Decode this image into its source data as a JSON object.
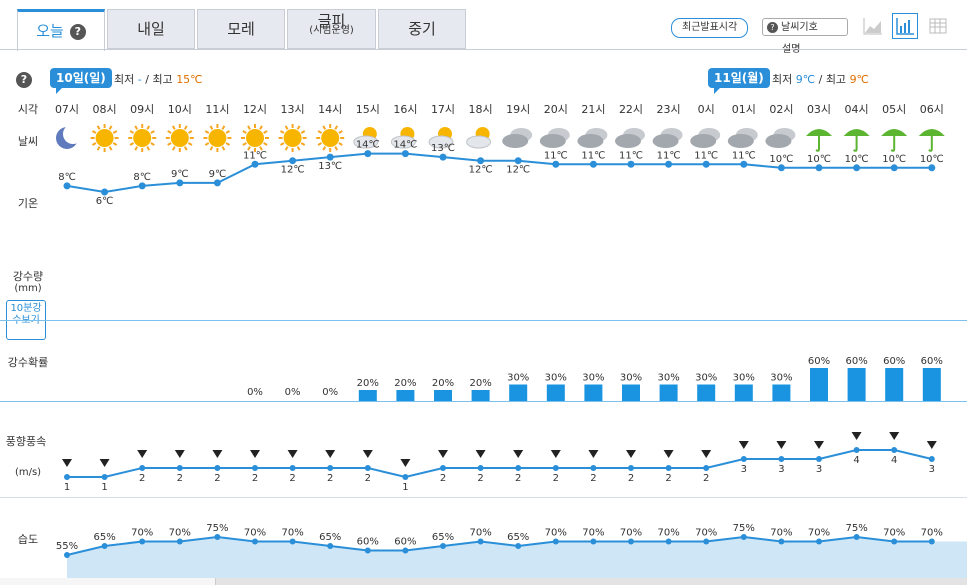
{
  "tabs": [
    {
      "label": "오늘",
      "active": true
    },
    {
      "label": "내일"
    },
    {
      "label": "모레"
    },
    {
      "label": "글피",
      "sub": "(시범운영)"
    },
    {
      "label": "중기"
    }
  ],
  "toolbar": {
    "latest_time": "최근발표시각",
    "weather_symbol": "날씨기호",
    "weather_symbol_desc": "설명"
  },
  "labels": {
    "time": "시각",
    "weather": "날씨",
    "temp": "기온",
    "precip": "강수량",
    "precip_unit": "(mm)",
    "precip_btn": "10분강수보기",
    "prob": "강수확률",
    "wind": "풍향풍속",
    "wind_unit": "(m/s)",
    "humidity": "습도"
  },
  "day1": {
    "date": "10일(일)",
    "min_label": "최저",
    "min": "-",
    "max_label": "최고",
    "max": "15℃"
  },
  "day2": {
    "date": "11일(월)",
    "min_label": "최저",
    "min": "9℃",
    "max_label": "최고",
    "max": "9℃"
  },
  "colors": {
    "accent": "#2a8fd8",
    "cold": "#2a8fd8",
    "warm": "#e07000"
  },
  "chart_data": {
    "type": "table",
    "hours": [
      "07시",
      "08시",
      "09시",
      "10시",
      "11시",
      "12시",
      "13시",
      "14시",
      "15시",
      "16시",
      "17시",
      "18시",
      "19시",
      "20시",
      "21시",
      "22시",
      "23시",
      "0시",
      "01시",
      "02시",
      "03시",
      "04시",
      "05시",
      "06시"
    ],
    "weather": [
      "moon",
      "sun",
      "sun",
      "sun",
      "sun",
      "sun",
      "sun",
      "sun",
      "partly",
      "partly",
      "partly",
      "partly",
      "cloud",
      "cloud",
      "cloud",
      "cloud",
      "cloud",
      "cloud",
      "cloud",
      "cloud",
      "rain",
      "rain",
      "rain",
      "rain"
    ],
    "temp": [
      8,
      6,
      8,
      9,
      9,
      11,
      12,
      13,
      14,
      14,
      13,
      12,
      12,
      11,
      11,
      11,
      11,
      11,
      11,
      10,
      10,
      10,
      10,
      10
    ],
    "precip_prob": [
      null,
      null,
      null,
      null,
      null,
      0,
      0,
      0,
      20,
      20,
      20,
      20,
      30,
      30,
      30,
      30,
      30,
      30,
      30,
      30,
      60,
      60,
      60,
      60
    ],
    "wind_speed": [
      1,
      1,
      2,
      2,
      2,
      2,
      2,
      2,
      2,
      1,
      2,
      2,
      2,
      2,
      2,
      2,
      2,
      2,
      3,
      3,
      3,
      4,
      4,
      3
    ],
    "humidity": [
      55,
      65,
      70,
      70,
      75,
      70,
      70,
      65,
      60,
      60,
      65,
      70,
      65,
      70,
      70,
      70,
      70,
      70,
      75,
      70,
      70,
      75,
      70,
      70
    ]
  }
}
